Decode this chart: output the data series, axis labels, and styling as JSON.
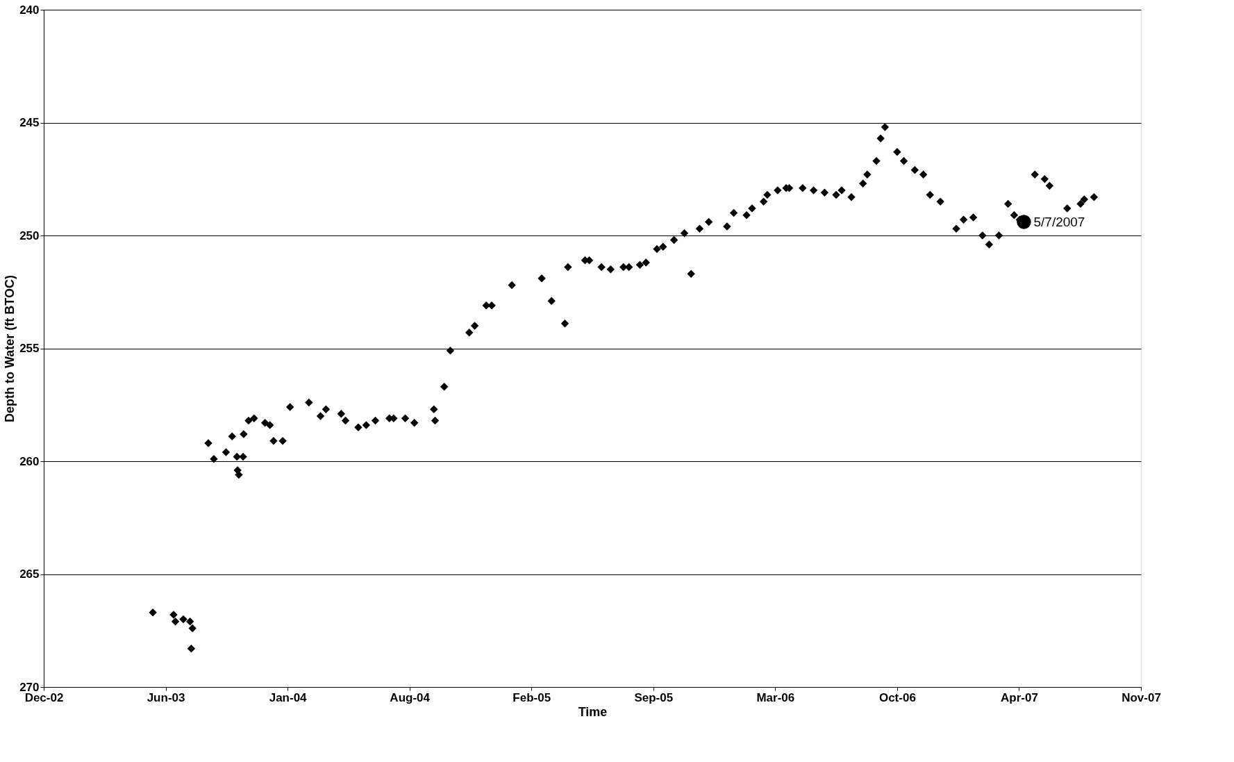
{
  "chart_data": {
    "type": "scatter",
    "xlabel": "Time",
    "ylabel": "Depth to Water (ft BTOC)",
    "xlim": [
      "2002-12-11",
      "2007-11-15"
    ],
    "xticks": [
      {
        "value": "2002-12-11",
        "label": "Dec-02"
      },
      {
        "value": "2003-06-29",
        "label": "Jun-03"
      },
      {
        "value": "2004-01-15",
        "label": "Jan-04"
      },
      {
        "value": "2004-08-02",
        "label": "Aug-04"
      },
      {
        "value": "2005-02-18",
        "label": "Feb-05"
      },
      {
        "value": "2005-09-06",
        "label": "Sep-05"
      },
      {
        "value": "2006-03-25",
        "label": "Mar-06"
      },
      {
        "value": "2006-10-11",
        "label": "Oct-06"
      },
      {
        "value": "2007-04-29",
        "label": "Apr-07"
      },
      {
        "value": "2007-11-15",
        "label": "Nov-07"
      }
    ],
    "ylim": [
      270,
      240
    ],
    "yticks": [
      240,
      245,
      250,
      255,
      260,
      265,
      270
    ],
    "grid": "y",
    "series": [
      {
        "color": "#000000",
        "marker": "diamond",
        "x": [
          "2003-06-08",
          "2003-07-12",
          "2003-07-15",
          "2003-07-28",
          "2003-08-08",
          "2003-08-12",
          "2003-08-10",
          "2003-09-07",
          "2003-09-16",
          "2003-10-06",
          "2003-10-16",
          "2003-10-24",
          "2003-10-25",
          "2003-10-27",
          "2003-11-04",
          "2003-11-03",
          "2003-11-12",
          "2003-11-21",
          "2003-12-09",
          "2003-12-17",
          "2003-12-23",
          "2004-01-07",
          "2004-01-19",
          "2004-02-19",
          "2004-03-09",
          "2004-03-18",
          "2004-04-12",
          "2004-04-19",
          "2004-05-10",
          "2004-05-23",
          "2004-06-07",
          "2004-06-30",
          "2004-07-07",
          "2004-07-26",
          "2004-08-10",
          "2004-09-11",
          "2004-09-13",
          "2004-09-28",
          "2004-10-08",
          "2004-11-08",
          "2004-11-17",
          "2004-12-06",
          "2004-12-15",
          "2005-01-17",
          "2005-03-07",
          "2005-03-23",
          "2005-04-14",
          "2005-04-19",
          "2005-05-17",
          "2005-05-24",
          "2005-06-13",
          "2005-06-28",
          "2005-07-19",
          "2005-07-28",
          "2005-08-15",
          "2005-08-25",
          "2005-09-12",
          "2005-09-22",
          "2005-10-10",
          "2005-10-27",
          "2005-11-07",
          "2005-11-21",
          "2005-12-06",
          "2006-01-05",
          "2006-01-16",
          "2006-02-06",
          "2006-02-15",
          "2006-03-06",
          "2006-03-12",
          "2006-03-29",
          "2006-04-12",
          "2006-04-17",
          "2006-05-09",
          "2006-05-27",
          "2006-06-14",
          "2006-07-03",
          "2006-07-12",
          "2006-07-28",
          "2006-08-16",
          "2006-08-23",
          "2006-09-07",
          "2006-09-14",
          "2006-09-21",
          "2006-10-11",
          "2006-10-22",
          "2006-11-09",
          "2006-11-23",
          "2006-12-04",
          "2006-12-21",
          "2007-01-16",
          "2007-01-28",
          "2007-02-13",
          "2007-02-28",
          "2007-03-11",
          "2007-03-27",
          "2007-04-11",
          "2007-04-21",
          "2007-04-30",
          "2007-05-25",
          "2007-06-10",
          "2007-06-18",
          "2007-07-17",
          "2007-08-08",
          "2007-08-14",
          "2007-08-30"
        ],
        "values": [
          266.7,
          266.8,
          267.1,
          267.0,
          267.1,
          267.4,
          268.3,
          259.2,
          259.9,
          259.6,
          258.9,
          259.8,
          260.4,
          260.6,
          258.8,
          259.8,
          258.2,
          258.1,
          258.3,
          258.4,
          259.1,
          259.1,
          257.6,
          257.4,
          258.0,
          257.7,
          257.9,
          258.2,
          258.5,
          258.4,
          258.2,
          258.1,
          258.1,
          258.1,
          258.3,
          257.7,
          258.2,
          256.7,
          255.1,
          254.3,
          254.0,
          253.1,
          253.1,
          252.2,
          251.9,
          252.9,
          253.9,
          251.4,
          251.1,
          251.1,
          251.4,
          251.5,
          251.4,
          251.4,
          251.3,
          251.2,
          250.6,
          250.5,
          250.2,
          249.9,
          251.7,
          249.7,
          249.4,
          249.6,
          249.0,
          249.1,
          248.8,
          248.5,
          248.2,
          248.0,
          247.9,
          247.9,
          247.9,
          248.0,
          248.1,
          248.2,
          248.0,
          248.3,
          247.7,
          247.3,
          246.7,
          245.7,
          245.2,
          246.3,
          246.7,
          247.1,
          247.3,
          248.2,
          248.5,
          249.7,
          249.3,
          249.2,
          250.0,
          250.4,
          250.0,
          248.6,
          249.1,
          249.3,
          247.3,
          247.5,
          247.8,
          248.8,
          248.6,
          248.4,
          248.3
        ]
      },
      {
        "color": "#000000",
        "marker": "circle",
        "x": [
          "2007-05-07"
        ],
        "values": [
          249.4
        ]
      }
    ],
    "annotations": [
      {
        "text": "5/7/2007",
        "x": "2007-05-07",
        "y": 249.4
      }
    ]
  }
}
